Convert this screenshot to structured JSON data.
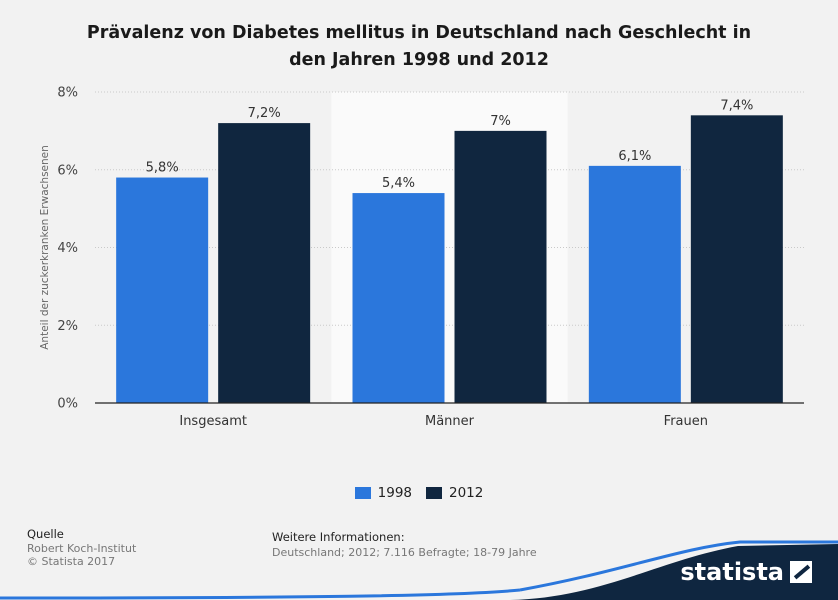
{
  "chart_data": {
    "type": "bar",
    "title": "Prävalenz von Diabetes mellitus in Deutschland nach Geschlecht in den Jahren 1998 und 2012",
    "title_lines": [
      "Prävalenz von Diabetes mellitus in Deutschland nach Geschlecht in",
      "den Jahren 1998 und 2012"
    ],
    "xlabel": "",
    "ylabel": "Anteil der zuckerkranken Erwachsenen",
    "categories": [
      "Insgesamt",
      "Männer",
      "Frauen"
    ],
    "series": [
      {
        "name": "1998",
        "color": "#2b77dc",
        "values": [
          5.8,
          5.4,
          6.1
        ],
        "labels": [
          "5,8%",
          "5,4%",
          "6,1%"
        ]
      },
      {
        "name": "2012",
        "color": "#10263f",
        "values": [
          7.2,
          7.0,
          7.4
        ],
        "labels": [
          "7,2%",
          "7%",
          "7,4%"
        ]
      }
    ],
    "ylim": [
      0,
      8
    ],
    "yticks": [
      0,
      2,
      4,
      6,
      8
    ],
    "ytick_labels": [
      "0%",
      "2%",
      "4%",
      "6%",
      "8%"
    ],
    "grid": true,
    "legend_position": "bottom-center"
  },
  "footer": {
    "source_heading": "Quelle",
    "source_name": "Robert Koch-Institut",
    "copyright": "© Statista 2017",
    "info_heading": "Weitere Informationen:",
    "info_text": "Deutschland; 2012; 7.116 Befragte; 18-79 Jahre",
    "brand": "statista"
  }
}
